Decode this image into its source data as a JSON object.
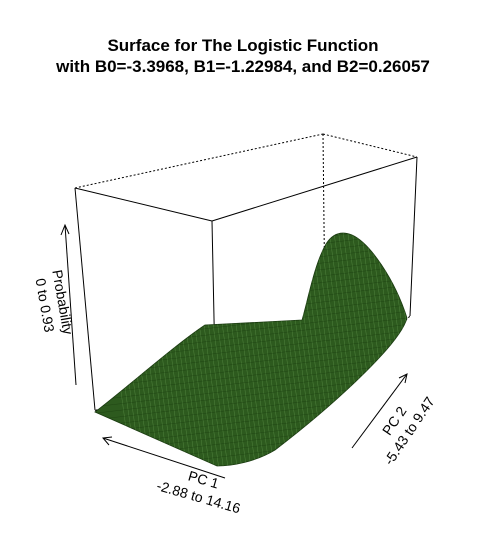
{
  "chart_data": {
    "type": "surface",
    "title": "Surface for The Logistic Function",
    "subtitle": "with B0=-3.3968, B1=-1.22984, and B2=0.26057",
    "x_axis": {
      "name": "PC 1",
      "range_label": "-2.88 to 14.16",
      "range": [
        -2.88,
        14.16
      ]
    },
    "y_axis": {
      "name": "PC 2",
      "range_label": "-5.43 to 9.47",
      "range": [
        -5.43,
        9.47
      ]
    },
    "z_axis": {
      "name": "Probability",
      "range_label": "0 to 0.93",
      "range": [
        0,
        0.93
      ]
    },
    "coefficients": {
      "B0": -3.3968,
      "B1": -1.22984,
      "B2": 0.26057
    },
    "surface_color": "#2d5a1e",
    "mesh_color": "#1a3a10"
  }
}
